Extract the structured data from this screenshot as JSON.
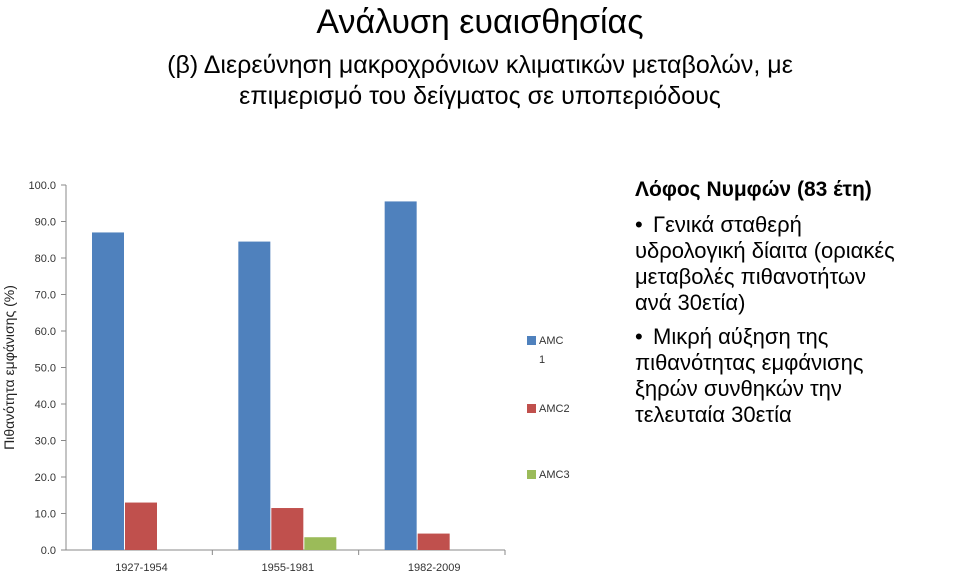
{
  "slide": {
    "title": "Ανάλυση ευαισθησίας",
    "subtitle_line1": "(β) Διερεύνηση μακροχρόνιων κλιματικών μεταβολών, με",
    "subtitle_line2": "επιμερισμό του δείγματος σε υποπεριόδους"
  },
  "side": {
    "heading": "Λόφος Νυμφών (83 έτη)",
    "bullets": [
      {
        "glyph": "•",
        "lines": [
          "Γενικά σταθερή",
          "υδρολογική δίαιτα (οριακές",
          "μεταβολές πιθανοτήτων",
          "ανά 30ετία)"
        ]
      },
      {
        "glyph": "•",
        "lines": [
          "Μικρή αύξηση της",
          "πιθανότητας εμφάνισης",
          "ξηρών συνθηκών την",
          "τελευταία 30ετία"
        ]
      }
    ]
  },
  "chart_data": {
    "type": "bar",
    "categories": [
      "1927-1954",
      "1955-1981",
      "1982-2009"
    ],
    "series": [
      {
        "name": "AMC\n1",
        "legend_lines": [
          "AMC",
          "1"
        ],
        "color": "#4f81bd",
        "values": [
          87.0,
          84.5,
          95.5
        ]
      },
      {
        "name": "AMC2",
        "legend_lines": [
          "AMC2"
        ],
        "color": "#c0504d",
        "values": [
          13.0,
          11.5,
          4.5
        ]
      },
      {
        "name": "AMC3",
        "legend_lines": [
          "AMC3"
        ],
        "color": "#9bbb59",
        "values": [
          0,
          3.5,
          0
        ]
      }
    ],
    "ylabel": "Πιθανότητα εμφάνισης (%)",
    "xlabel": "",
    "ylim": [
      0,
      100
    ],
    "yticks": [
      "0.0",
      "10.0",
      "20.0",
      "30.0",
      "40.0",
      "50.0",
      "60.0",
      "70.0",
      "80.0",
      "90.0",
      "100.0"
    ],
    "grid": false,
    "legend": "right"
  }
}
